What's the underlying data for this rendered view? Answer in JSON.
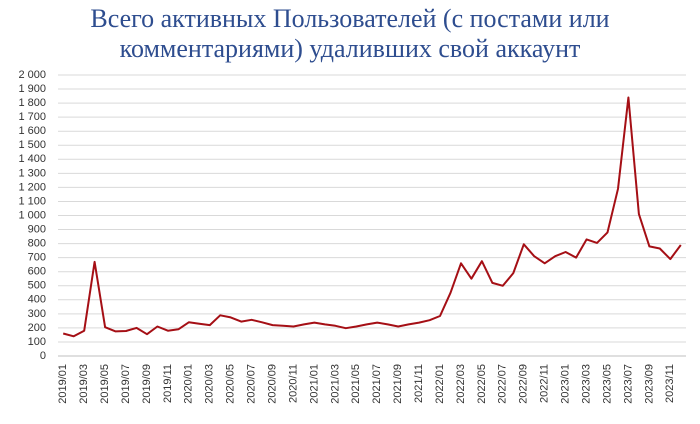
{
  "chart_data": {
    "type": "line",
    "title": [
      "Всего активных Пользователей (с постами или",
      "комментариями) удаливших свой аккаунт"
    ],
    "categories": [
      "2019/01",
      null,
      "2019/03",
      null,
      "2019/05",
      null,
      "2019/07",
      null,
      "2019/09",
      null,
      "2019/11",
      null,
      "2020/01",
      null,
      "2020/03",
      null,
      "2020/05",
      null,
      "2020/07",
      null,
      "2020/09",
      null,
      "2020/11",
      null,
      "2021/01",
      null,
      "2021/03",
      null,
      "2021/05",
      null,
      "2021/07",
      null,
      "2021/09",
      null,
      "2021/11",
      null,
      "2022/01",
      null,
      "2022/03",
      null,
      "2022/05",
      null,
      "2022/07",
      null,
      "2022/09",
      null,
      "2022/11",
      null,
      "2023/01",
      null,
      "2023/03",
      null,
      "2023/05",
      null,
      "2023/07",
      null,
      "2023/09",
      null,
      "2023/11",
      null
    ],
    "values": [
      160,
      140,
      180,
      670,
      205,
      175,
      178,
      200,
      155,
      210,
      180,
      190,
      240,
      230,
      220,
      290,
      275,
      245,
      258,
      240,
      220,
      215,
      210,
      225,
      238,
      225,
      215,
      198,
      210,
      225,
      238,
      225,
      210,
      225,
      238,
      255,
      285,
      450,
      660,
      550,
      675,
      520,
      500,
      590,
      795,
      710,
      660,
      710,
      740,
      700,
      830,
      805,
      880,
      1190,
      1840,
      1010,
      780,
      765,
      690,
      790
    ],
    "color": "#a50f15",
    "ylim": [
      0,
      2000
    ],
    "yticks": [
      0,
      100,
      200,
      300,
      400,
      500,
      600,
      700,
      800,
      900,
      {
        "value": 1000,
        "label": "1 000"
      },
      {
        "value": 1100,
        "label": "1 100"
      },
      {
        "value": 1200,
        "label": "1 200"
      },
      {
        "value": 1300,
        "label": "1 300"
      },
      {
        "value": 1400,
        "label": "1 400"
      },
      {
        "value": 1500,
        "label": "1 500"
      },
      {
        "value": 1600,
        "label": "1 600"
      },
      {
        "value": 1700,
        "label": "1 700"
      },
      {
        "value": 1800,
        "label": "1 800"
      },
      {
        "value": 1900,
        "label": "1 900"
      },
      {
        "value": 2000,
        "label": "2 000"
      }
    ],
    "grid": true
  }
}
